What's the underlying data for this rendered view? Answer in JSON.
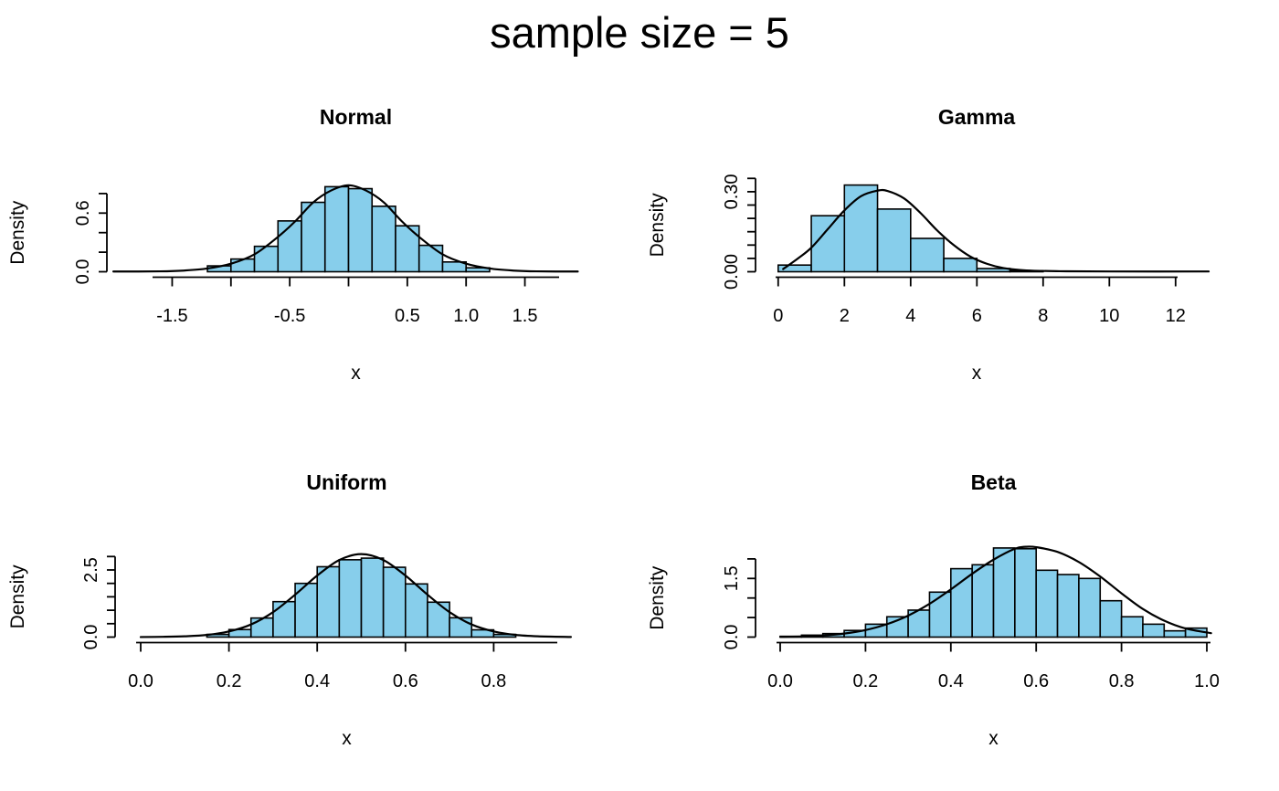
{
  "title": "sample size = 5",
  "colors": {
    "background": "#ffffff",
    "bar_fill": "#87CEEB",
    "bar_border": "#000000",
    "curve": "#000000",
    "axis": "#000000",
    "text": "#000000"
  },
  "chart_data": [
    {
      "id": "normal",
      "type": "histogram",
      "title": "Normal",
      "xlabel": "x",
      "ylabel": "Density",
      "xlim": [
        -2.05,
        1.95
      ],
      "ylim": [
        0,
        0.8
      ],
      "grid": false,
      "x_ticks": [
        -1.5,
        -1.0,
        -0.5,
        0.0,
        0.5,
        1.0,
        1.5
      ],
      "x_tick_labels": [
        "-1.5",
        "",
        "-0.5",
        "",
        "0.5",
        "1.0",
        "1.5"
      ],
      "y_ticks": [
        0,
        0.2,
        0.4,
        0.6,
        0.8
      ],
      "y_tick_labels": [
        "0.0",
        "",
        "",
        "0.6",
        ""
      ],
      "bin_start": -1.2,
      "bin_width": 0.2,
      "bar_densities": [
        0.06,
        0.13,
        0.26,
        0.52,
        0.71,
        0.87,
        0.85,
        0.67,
        0.47,
        0.27,
        0.1,
        0.04
      ],
      "curve": [
        [
          -2.0,
          0.002
        ],
        [
          -1.6,
          0.004
        ],
        [
          -1.4,
          0.012
        ],
        [
          -1.2,
          0.033
        ],
        [
          -1.0,
          0.082
        ],
        [
          -0.8,
          0.178
        ],
        [
          -0.6,
          0.357
        ],
        [
          -0.45,
          0.52
        ],
        [
          -0.3,
          0.71
        ],
        [
          -0.15,
          0.83
        ],
        [
          0,
          0.885
        ],
        [
          0.15,
          0.83
        ],
        [
          0.3,
          0.71
        ],
        [
          0.45,
          0.52
        ],
        [
          0.6,
          0.357
        ],
        [
          0.8,
          0.178
        ],
        [
          1.0,
          0.082
        ],
        [
          1.2,
          0.033
        ],
        [
          1.4,
          0.012
        ],
        [
          1.6,
          0.004
        ],
        [
          1.95,
          0.002
        ]
      ]
    },
    {
      "id": "gamma",
      "type": "histogram",
      "title": "Gamma",
      "xlabel": "x",
      "ylabel": "Density",
      "xlim": [
        0,
        13.05
      ],
      "ylim": [
        0,
        0.35
      ],
      "grid": false,
      "x_ticks": [
        0,
        2,
        4,
        6,
        8,
        10,
        12
      ],
      "x_tick_labels": [
        "0",
        "2",
        "4",
        "6",
        "8",
        "10",
        "12"
      ],
      "y_ticks": [
        0,
        0.05,
        0.1,
        0.15,
        0.2,
        0.25,
        0.3,
        0.35
      ],
      "y_tick_labels": [
        "0.00",
        "",
        "",
        "",
        "",
        "",
        "0.30",
        ""
      ],
      "bin_start": 0,
      "bin_width": 1,
      "bar_densities": [
        0.025,
        0.21,
        0.325,
        0.235,
        0.125,
        0.05,
        0.012,
        0.004
      ],
      "curve": [
        [
          0.15,
          0.01
        ],
        [
          0.6,
          0.05
        ],
        [
          1.0,
          0.09
        ],
        [
          1.5,
          0.16
        ],
        [
          2.0,
          0.23
        ],
        [
          2.5,
          0.283
        ],
        [
          3.0,
          0.304
        ],
        [
          3.3,
          0.303
        ],
        [
          3.8,
          0.275
        ],
        [
          4.3,
          0.22
        ],
        [
          4.8,
          0.155
        ],
        [
          5.3,
          0.1
        ],
        [
          5.8,
          0.057
        ],
        [
          6.3,
          0.03
        ],
        [
          6.8,
          0.014
        ],
        [
          7.5,
          0.005
        ],
        [
          8.5,
          0.002
        ],
        [
          10,
          0.001
        ],
        [
          13,
          0.001
        ]
      ]
    },
    {
      "id": "uniform",
      "type": "histogram",
      "title": "Uniform",
      "xlabel": "x",
      "ylabel": "Density",
      "xlim": [
        0,
        0.975
      ],
      "ylim": [
        0,
        3.0
      ],
      "grid": false,
      "x_ticks": [
        0.0,
        0.2,
        0.4,
        0.6,
        0.8
      ],
      "x_tick_labels": [
        "0.0",
        "0.2",
        "0.4",
        "0.6",
        "0.8"
      ],
      "y_ticks": [
        0,
        0.5,
        1.0,
        1.5,
        2.0,
        2.5,
        3.0
      ],
      "y_tick_labels": [
        "0.0",
        "",
        "",
        "",
        "",
        "2.5",
        ""
      ],
      "bin_start": 0.15,
      "bin_width": 0.05,
      "bar_densities": [
        0.1,
        0.28,
        0.71,
        1.32,
        2.0,
        2.62,
        2.88,
        2.94,
        2.6,
        1.98,
        1.3,
        0.72,
        0.27,
        0.1
      ],
      "curve": [
        [
          0.0,
          0.002
        ],
        [
          0.05,
          0.01
        ],
        [
          0.1,
          0.03
        ],
        [
          0.15,
          0.08
        ],
        [
          0.2,
          0.21
        ],
        [
          0.25,
          0.47
        ],
        [
          0.3,
          0.93
        ],
        [
          0.35,
          1.58
        ],
        [
          0.4,
          2.29
        ],
        [
          0.45,
          2.87
        ],
        [
          0.5,
          3.09
        ],
        [
          0.55,
          2.87
        ],
        [
          0.6,
          2.29
        ],
        [
          0.65,
          1.58
        ],
        [
          0.7,
          0.93
        ],
        [
          0.75,
          0.47
        ],
        [
          0.8,
          0.21
        ],
        [
          0.85,
          0.08
        ],
        [
          0.9,
          0.03
        ],
        [
          0.975,
          0.005
        ]
      ]
    },
    {
      "id": "beta",
      "type": "histogram",
      "title": "Beta",
      "xlabel": "x",
      "ylabel": "Density",
      "xlim": [
        0,
        1.02
      ],
      "ylim": [
        0,
        2.0
      ],
      "grid": false,
      "x_ticks": [
        0.0,
        0.2,
        0.4,
        0.6,
        0.8,
        1.0
      ],
      "x_tick_labels": [
        "0.0",
        "0.2",
        "0.4",
        "0.6",
        "0.8",
        "1.0"
      ],
      "y_ticks": [
        0,
        0.5,
        1.0,
        1.5,
        2.0
      ],
      "y_tick_labels": [
        "0.0",
        "",
        "",
        "1.5",
        ""
      ],
      "bin_start": 0,
      "bin_width": 0.05,
      "bar_densities": [
        0.02,
        0.05,
        0.09,
        0.17,
        0.33,
        0.52,
        0.69,
        1.15,
        1.75,
        1.85,
        2.28,
        2.26,
        1.71,
        1.6,
        1.5,
        0.93,
        0.52,
        0.33,
        0.16,
        0.23
      ],
      "curve": [
        [
          0.0,
          0.005
        ],
        [
          0.05,
          0.015
        ],
        [
          0.1,
          0.04
        ],
        [
          0.15,
          0.09
        ],
        [
          0.2,
          0.18
        ],
        [
          0.25,
          0.33
        ],
        [
          0.3,
          0.55
        ],
        [
          0.35,
          0.85
        ],
        [
          0.4,
          1.22
        ],
        [
          0.45,
          1.62
        ],
        [
          0.5,
          1.98
        ],
        [
          0.55,
          2.26
        ],
        [
          0.575,
          2.31
        ],
        [
          0.6,
          2.3
        ],
        [
          0.65,
          2.18
        ],
        [
          0.7,
          1.92
        ],
        [
          0.75,
          1.55
        ],
        [
          0.8,
          1.12
        ],
        [
          0.85,
          0.72
        ],
        [
          0.9,
          0.42
        ],
        [
          0.95,
          0.22
        ],
        [
          1.01,
          0.1
        ]
      ]
    }
  ]
}
